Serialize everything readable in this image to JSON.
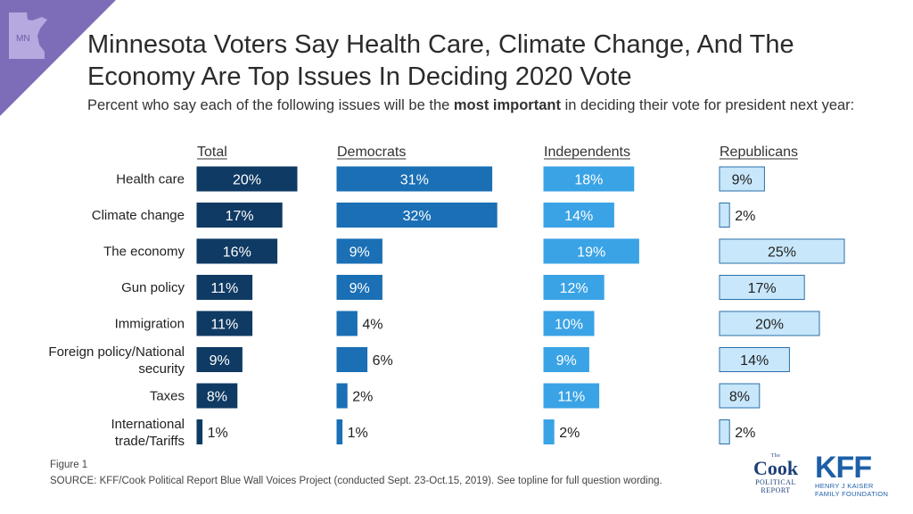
{
  "header": {
    "state_label": "MN",
    "title": "Minnesota Voters Say Health Care, Climate Change, And The Economy Are Top Issues In Deciding 2020 Vote",
    "subtitle_pre": "Percent who say each of the following issues will be the ",
    "subtitle_bold": "most important",
    "subtitle_post": " in deciding their vote for president next year:"
  },
  "chart_data": {
    "type": "bar",
    "orientation": "horizontal",
    "categories": [
      "Health care",
      "Climate change",
      "The economy",
      "Gun policy",
      "Immigration",
      "Foreign policy/National security",
      "Taxes",
      "International trade/Tariffs"
    ],
    "series": [
      {
        "name": "Total",
        "values": [
          20,
          17,
          16,
          11,
          11,
          9,
          8,
          1
        ],
        "color": "#0f3a63",
        "text_color": "#ffffff"
      },
      {
        "name": "Democrats",
        "values": [
          31,
          32,
          9,
          9,
          4,
          6,
          2,
          1
        ],
        "color": "#1a6fb5",
        "text_color": "#ffffff"
      },
      {
        "name": "Independents",
        "values": [
          18,
          14,
          19,
          12,
          10,
          9,
          11,
          2
        ],
        "color": "#3aa3e6",
        "text_color": "#ffffff"
      },
      {
        "name": "Republicans",
        "values": [
          9,
          2,
          25,
          17,
          20,
          14,
          8,
          2
        ],
        "color": "#c8e7fb",
        "text_color": "#222222"
      }
    ],
    "value_suffix": "%"
  },
  "footer": {
    "figure": "Figure 1",
    "source": "SOURCE: KFF/Cook Political Report Blue Wall Voices Project (conducted Sept. 23-Oct.15, 2019). See topline for full question wording."
  },
  "logos": {
    "cook_small_top": "The",
    "cook_big": "Cook",
    "cook_small": "POLITICAL REPORT",
    "kff_big": "KFF",
    "kff_small_1": "HENRY J KAISER",
    "kff_small_2": "FAMILY FOUNDATION"
  }
}
